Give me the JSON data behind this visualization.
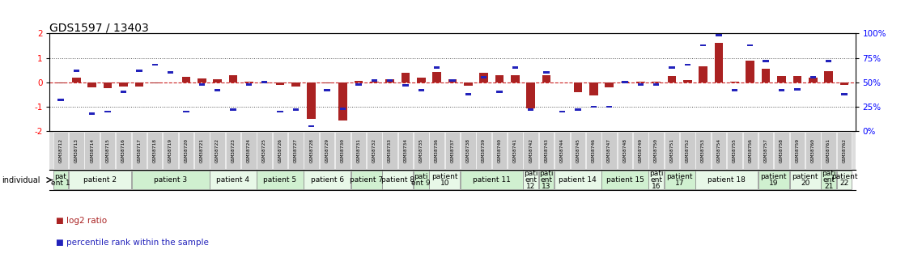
{
  "title": "GDS1597 / 13403",
  "samples": [
    "GSM38712",
    "GSM38713",
    "GSM38714",
    "GSM38715",
    "GSM38716",
    "GSM38717",
    "GSM38718",
    "GSM38719",
    "GSM38720",
    "GSM38721",
    "GSM38722",
    "GSM38723",
    "GSM38724",
    "GSM38725",
    "GSM38726",
    "GSM38727",
    "GSM38728",
    "GSM38729",
    "GSM38730",
    "GSM38731",
    "GSM38732",
    "GSM38733",
    "GSM38734",
    "GSM38735",
    "GSM38736",
    "GSM38737",
    "GSM38738",
    "GSM38739",
    "GSM38740",
    "GSM38741",
    "GSM38742",
    "GSM38743",
    "GSM38744",
    "GSM38745",
    "GSM38746",
    "GSM38747",
    "GSM38748",
    "GSM38749",
    "GSM38750",
    "GSM38751",
    "GSM38752",
    "GSM38753",
    "GSM38754",
    "GSM38755",
    "GSM38756",
    "GSM38757",
    "GSM38758",
    "GSM38759",
    "GSM38760",
    "GSM38761",
    "GSM38762"
  ],
  "log2_ratio": [
    -0.05,
    0.2,
    -0.2,
    -0.25,
    -0.18,
    -0.18,
    -0.05,
    -0.02,
    0.22,
    0.15,
    0.12,
    0.28,
    0.04,
    -0.04,
    -0.12,
    -0.18,
    -1.5,
    -0.05,
    -1.55,
    0.07,
    0.02,
    0.12,
    0.38,
    0.2,
    0.42,
    0.12,
    -0.15,
    0.4,
    0.3,
    0.3,
    -1.08,
    0.3,
    -0.02,
    -0.4,
    -0.55,
    -0.22,
    0.02,
    0.02,
    0.02,
    0.25,
    0.08,
    0.65,
    1.6,
    0.04,
    0.9,
    0.55,
    0.25,
    0.25,
    0.2,
    0.45,
    -0.12
  ],
  "percentile": [
    32,
    62,
    18,
    20,
    40,
    62,
    68,
    60,
    20,
    48,
    42,
    22,
    48,
    50,
    20,
    22,
    5,
    42,
    23,
    48,
    52,
    52,
    47,
    42,
    65,
    52,
    38,
    55,
    40,
    65,
    22,
    60,
    20,
    22,
    25,
    25,
    50,
    48,
    48,
    65,
    68,
    88,
    98,
    42,
    88,
    72,
    42,
    43,
    55,
    72,
    38
  ],
  "patients": [
    {
      "label": "pat\nent 1",
      "samples": [
        0
      ],
      "color": "#d0f0d0"
    },
    {
      "label": "patient 2",
      "samples": [
        1,
        2,
        3,
        4
      ],
      "color": "#e8f8e8"
    },
    {
      "label": "patient 3",
      "samples": [
        5,
        6,
        7,
        8,
        9
      ],
      "color": "#d0f0d0"
    },
    {
      "label": "patient 4",
      "samples": [
        10,
        11,
        12
      ],
      "color": "#e8f8e8"
    },
    {
      "label": "patient 5",
      "samples": [
        13,
        14,
        15
      ],
      "color": "#d0f0d0"
    },
    {
      "label": "patient 6",
      "samples": [
        16,
        17,
        18
      ],
      "color": "#e8f8e8"
    },
    {
      "label": "patient 7",
      "samples": [
        19,
        20
      ],
      "color": "#d0f0d0"
    },
    {
      "label": "patient 8",
      "samples": [
        21,
        22
      ],
      "color": "#e8f8e8"
    },
    {
      "label": "pati\nent 9",
      "samples": [
        23
      ],
      "color": "#d0f0d0"
    },
    {
      "label": "patient\n10",
      "samples": [
        24,
        25
      ],
      "color": "#e8f8e8"
    },
    {
      "label": "patient 11",
      "samples": [
        26,
        27,
        28,
        29
      ],
      "color": "#d0f0d0"
    },
    {
      "label": "pati\nent\n12",
      "samples": [
        30
      ],
      "color": "#e8f8e8"
    },
    {
      "label": "pati\nent\n13",
      "samples": [
        31
      ],
      "color": "#d0f0d0"
    },
    {
      "label": "patient 14",
      "samples": [
        32,
        33,
        34
      ],
      "color": "#e8f8e8"
    },
    {
      "label": "patient 15",
      "samples": [
        35,
        36,
        37
      ],
      "color": "#d0f0d0"
    },
    {
      "label": "pati\nent\n16",
      "samples": [
        38
      ],
      "color": "#e8f8e8"
    },
    {
      "label": "patient\n17",
      "samples": [
        39,
        40
      ],
      "color": "#d0f0d0"
    },
    {
      "label": "patient 18",
      "samples": [
        41,
        42,
        43,
        44
      ],
      "color": "#e8f8e8"
    },
    {
      "label": "patient\n19",
      "samples": [
        45,
        46
      ],
      "color": "#d0f0d0"
    },
    {
      "label": "patient\n20",
      "samples": [
        47,
        48
      ],
      "color": "#e8f8e8"
    },
    {
      "label": "pati\nent\n21",
      "samples": [
        49
      ],
      "color": "#d0f0d0"
    },
    {
      "label": "patient\n22",
      "samples": [
        50
      ],
      "color": "#e8f8e8"
    }
  ],
  "bar_color": "#aa2222",
  "dot_color": "#2222bb",
  "zero_line_color": "#cc2222",
  "dotted_line_color": "#555555",
  "bg_color": "#ffffff",
  "sample_box_color": "#cccccc",
  "title_fontsize": 10,
  "legend_fontsize": 7.5
}
